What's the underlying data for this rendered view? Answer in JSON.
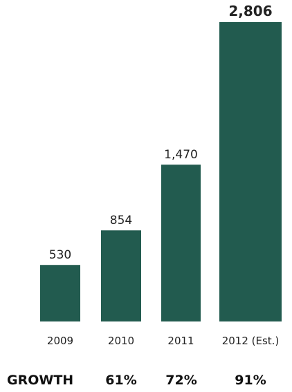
{
  "chart_data": {
    "type": "bar",
    "categories": [
      "2009",
      "2010",
      "2011",
      "2012 (Est.)"
    ],
    "values": [
      530,
      854,
      1470,
      2806
    ],
    "value_labels": [
      "530",
      "854",
      "1,470",
      "2,806"
    ],
    "emphasized_index": 3,
    "bar_color": "#225b4f",
    "title": "",
    "xlabel": "",
    "ylabel": "",
    "ylim": [
      0,
      2806
    ],
    "grid": false,
    "legend": "none",
    "growth": {
      "label": "GROWTH",
      "values": [
        "61%",
        "72%",
        "91%"
      ]
    }
  }
}
